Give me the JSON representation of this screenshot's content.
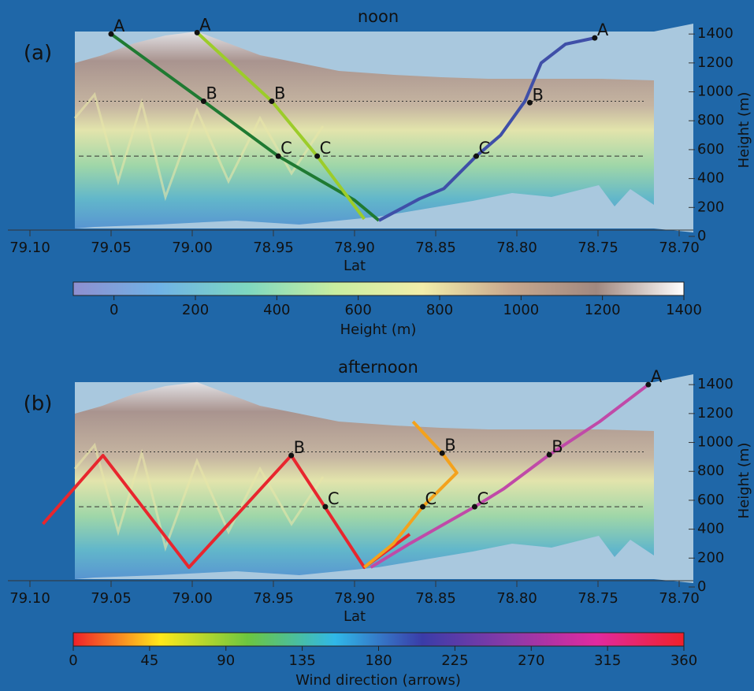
{
  "chart_data": [
    {
      "type": "line",
      "title": "noon",
      "panel_label": "(a)",
      "xlabel": "Lat",
      "ylabel": "Height (m)",
      "xlim": [
        79.1,
        78.7
      ],
      "xticks": [
        {
          "value": 79.1,
          "label": "79.10"
        },
        79.05,
        {
          "value": 79.0,
          "label": "79.00"
        },
        78.95,
        {
          "value": 78.9,
          "label": "78.90"
        },
        78.85,
        {
          "value": 78.8,
          "label": "78.80"
        },
        78.75,
        {
          "value": 78.7,
          "label": "78.70"
        }
      ],
      "ylim": [
        0,
        1450
      ],
      "yticks": [
        0,
        200,
        400,
        600,
        800,
        1000,
        1200,
        1400
      ],
      "hlines": [
        935,
        555
      ],
      "series": [
        {
          "color": "#1f7a32",
          "x": [
            79.05,
            78.993,
            78.947,
            78.9,
            78.885
          ],
          "values": [
            1400,
            935,
            555,
            250,
            110
          ]
        },
        {
          "color": "#9ccc2a",
          "x": [
            78.997,
            78.951,
            78.923,
            78.894
          ],
          "values": [
            1410,
            935,
            555,
            120
          ]
        },
        {
          "color": "#3f4fa8",
          "x": [
            78.885,
            78.86,
            78.845,
            78.825,
            78.81,
            78.795,
            78.785,
            78.77,
            78.752
          ],
          "values": [
            110,
            260,
            330,
            555,
            700,
            935,
            1200,
            1330,
            1373
          ]
        }
      ],
      "annotations": [
        {
          "text": "A",
          "x": 79.05,
          "y": 1400
        },
        {
          "text": "A",
          "x": 78.997,
          "y": 1410
        },
        {
          "text": "A",
          "x": 78.752,
          "y": 1373
        },
        {
          "text": "B",
          "x": 78.993,
          "y": 935
        },
        {
          "text": "B",
          "x": 78.951,
          "y": 935
        },
        {
          "text": "B",
          "x": 78.792,
          "y": 925
        },
        {
          "text": "C",
          "x": 78.947,
          "y": 555
        },
        {
          "text": "C",
          "x": 78.923,
          "y": 555
        },
        {
          "text": "C",
          "x": 78.825,
          "y": 555
        }
      ]
    },
    {
      "type": "colorbar",
      "label": "Height (m)",
      "xlim": [
        -100,
        1400
      ],
      "xticks": [
        0,
        200,
        400,
        600,
        800,
        1000,
        1200,
        1400
      ],
      "colors": [
        "#8e8fd0",
        "#6fb3e6",
        "#7ed8c0",
        "#c8eea0",
        "#f2eeaa",
        "#c8a88e",
        "#a08880",
        "#ffffff"
      ]
    },
    {
      "type": "line",
      "title": "afternoon",
      "panel_label": "(b)",
      "xlabel": "Lat",
      "ylabel": "Height (m)",
      "xlim": [
        79.1,
        78.7
      ],
      "xticks": [
        {
          "value": 79.1,
          "label": "79.10"
        },
        79.05,
        {
          "value": 79.0,
          "label": "79.00"
        },
        78.95,
        {
          "value": 78.9,
          "label": "78.90"
        },
        78.85,
        {
          "value": 78.8,
          "label": "78.80"
        },
        78.75,
        {
          "value": 78.7,
          "label": "78.70"
        }
      ],
      "ylim": [
        0,
        1450
      ],
      "yticks": [
        0,
        200,
        400,
        600,
        800,
        1000,
        1200,
        1400
      ],
      "hlines": [
        935,
        555
      ],
      "series": [
        {
          "color": "#e8262e",
          "x": [
            79.092,
            79.055,
            79.002,
            78.939,
            78.894,
            78.866
          ],
          "values": [
            436,
            910,
            136,
            910,
            136,
            365
          ]
        },
        {
          "color": "#f4a21c",
          "x": [
            78.864,
            78.846,
            78.837,
            78.858,
            78.876,
            78.894
          ],
          "values": [
            1144,
            926,
            790,
            555,
            300,
            136
          ]
        },
        {
          "color": "#c04aa8",
          "x": [
            78.89,
            78.866,
            78.826,
            78.808,
            78.78,
            78.749,
            78.719
          ],
          "values": [
            136,
            300,
            555,
            680,
            915,
            1144,
            1400
          ]
        }
      ],
      "annotations": [
        {
          "text": "A",
          "x": 78.719,
          "y": 1400
        },
        {
          "text": "B",
          "x": 78.939,
          "y": 910
        },
        {
          "text": "B",
          "x": 78.846,
          "y": 926
        },
        {
          "text": "B",
          "x": 78.78,
          "y": 915
        },
        {
          "text": "C",
          "x": 78.918,
          "y": 555
        },
        {
          "text": "C",
          "x": 78.858,
          "y": 555
        },
        {
          "text": "C",
          "x": 78.826,
          "y": 555
        }
      ]
    },
    {
      "type": "colorbar",
      "label": "Wind direction (arrows)",
      "xlim": [
        0,
        360
      ],
      "xticks": [
        0,
        45,
        90,
        135,
        180,
        225,
        270,
        315,
        360
      ],
      "colors": [
        "#f0202a",
        "#ffe81a",
        "#6cc640",
        "#30b8e8",
        "#3a3ca8",
        "#8a3aa8",
        "#e02aa0",
        "#f0202a"
      ]
    }
  ]
}
